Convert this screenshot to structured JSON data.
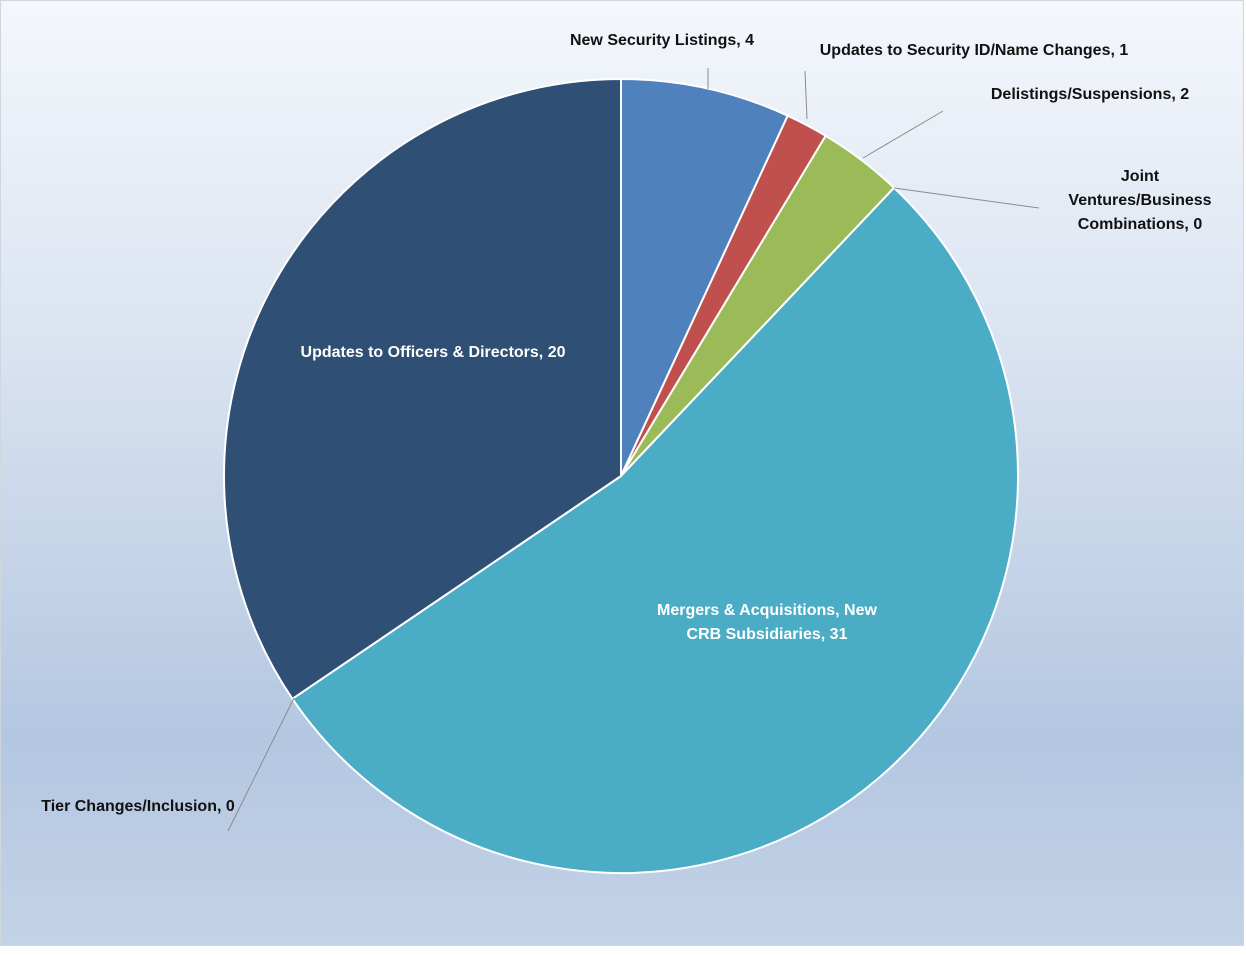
{
  "chart_data": {
    "type": "pie",
    "title": "",
    "slices": [
      {
        "name": "New Security Listings",
        "value": 4,
        "label": "New Security Listings, 4",
        "color": "#4f81bd"
      },
      {
        "name": "Updates to Security ID/Name Changes",
        "value": 1,
        "label": "Updates to Security ID/Name Changes, 1",
        "color": "#c0504d"
      },
      {
        "name": "Delistings/Suspensions",
        "value": 2,
        "label": "Delistings/Suspensions, 2",
        "color": "#9bbb59"
      },
      {
        "name": "Joint Ventures/Business Combinations",
        "value": 0,
        "label": [
          "Joint",
          "Ventures/Business",
          "Combinations, 0"
        ],
        "color": "#8064a2"
      },
      {
        "name": "Mergers & Acquisitions, New CRB Subsidiaries",
        "value": 31,
        "label": [
          "Mergers & Acquisitions, New",
          "CRB Subsidiaries, 31"
        ],
        "color": "#4bacc6"
      },
      {
        "name": "Tier Changes/Inclusion",
        "value": 0,
        "label": "Tier Changes/Inclusion, 0",
        "color": "#f79646"
      },
      {
        "name": "Updates to Officers & Directors",
        "value": 20,
        "label": "Updates to Officers & Directors, 20",
        "color": "#2f4f75"
      }
    ],
    "start_angle": "12 o'clock",
    "direction": "clockwise",
    "legend": "none",
    "slice_border_color": "#ffffff",
    "leader_line_color": "#8c8c8c"
  }
}
